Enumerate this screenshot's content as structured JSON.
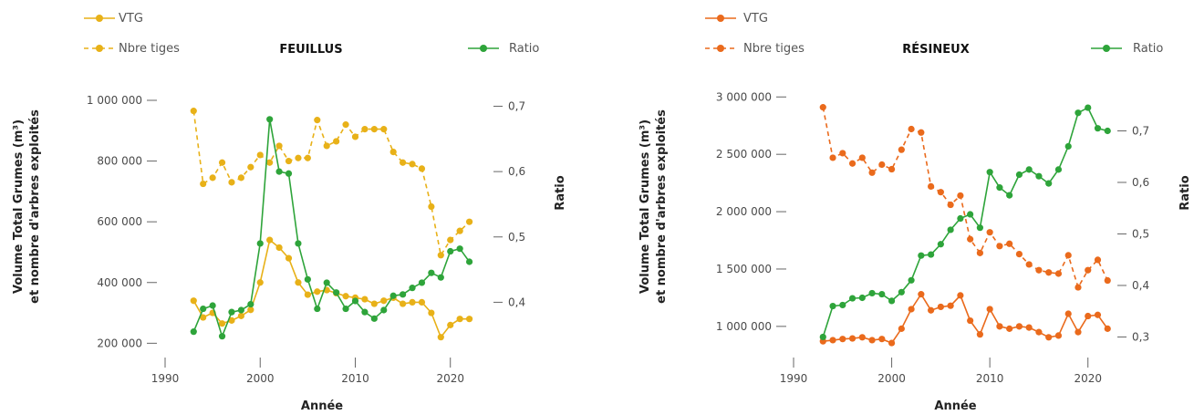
{
  "chart_data": [
    {
      "type": "line",
      "title": "FEUILLUS",
      "xlabel": "Année",
      "ylabel_line1": "Volume Total Grumes (m³)",
      "ylabel_line2": "et nombre d'arbres exploités",
      "y2label": "Ratio",
      "xlim": [
        1990,
        2023
      ],
      "ylim": [
        180000,
        1030000
      ],
      "y2lim": [
        0.328,
        0.723
      ],
      "xticks": [
        1990,
        2000,
        2010,
        2020
      ],
      "yticks": [
        200000,
        400000,
        600000,
        800000,
        1000000
      ],
      "ytick_labels": [
        "200 000",
        "400 000",
        "600 000",
        "800 000",
        "1 000 000"
      ],
      "y2ticks": [
        0.4,
        0.5,
        0.6,
        0.7
      ],
      "y2tick_labels": [
        "0,4",
        "0,5",
        "0,6",
        "0,7"
      ],
      "grid": false,
      "colors": {
        "vtg": "#e8b118",
        "ratio": "#2ea43a"
      },
      "x": [
        1993,
        1994,
        1995,
        1996,
        1997,
        1998,
        1999,
        2000,
        2001,
        2002,
        2003,
        2004,
        2005,
        2006,
        2007,
        2008,
        2009,
        2010,
        2011,
        2012,
        2013,
        2014,
        2015,
        2016,
        2017,
        2018,
        2019,
        2020,
        2021,
        2022
      ],
      "series": [
        {
          "name": "VTG",
          "axis": "left",
          "style": "solid",
          "color": "#e8b118",
          "values": [
            340000,
            285000,
            300000,
            265000,
            275000,
            290000,
            310000,
            400000,
            540000,
            515000,
            480000,
            400000,
            360000,
            370000,
            375000,
            365000,
            355000,
            350000,
            345000,
            330000,
            340000,
            350000,
            330000,
            335000,
            335000,
            300000,
            220000,
            260000,
            280000,
            280000
          ]
        },
        {
          "name": "Nbre tiges",
          "axis": "left",
          "style": "dashed",
          "color": "#e8b118",
          "values": [
            965000,
            725000,
            745000,
            795000,
            730000,
            745000,
            780000,
            820000,
            795000,
            850000,
            800000,
            810000,
            810000,
            935000,
            850000,
            865000,
            920000,
            880000,
            905000,
            905000,
            905000,
            830000,
            795000,
            790000,
            775000,
            650000,
            490000,
            540000,
            570000,
            600000
          ]
        },
        {
          "name": "Ratio",
          "axis": "right",
          "style": "solid",
          "color": "#2ea43a",
          "values": [
            0.355,
            0.39,
            0.395,
            0.348,
            0.385,
            0.388,
            0.397,
            0.49,
            0.68,
            0.6,
            0.597,
            0.49,
            0.435,
            0.39,
            0.43,
            0.415,
            0.39,
            0.402,
            0.385,
            0.375,
            0.388,
            0.41,
            0.412,
            0.422,
            0.43,
            0.445,
            0.438,
            0.478,
            0.482,
            0.462
          ]
        }
      ]
    },
    {
      "type": "line",
      "title": "RÉSINEUX",
      "xlabel": "Année",
      "ylabel_line1": "Volume Total Grumes (m³)",
      "ylabel_line2": "et nombre d'arbres exploités",
      "y2label": "Ratio",
      "xlim": [
        1990,
        2023
      ],
      "ylim": [
        800000,
        3050000
      ],
      "y2lim": [
        0.276,
        0.777
      ],
      "xticks": [
        1990,
        2000,
        2010,
        2020
      ],
      "yticks": [
        1000000,
        1500000,
        2000000,
        2500000,
        3000000
      ],
      "ytick_labels": [
        "1 000 000",
        "1 500 000",
        "2 000 000",
        "2 500 000",
        "3 000 000"
      ],
      "y2ticks": [
        0.3,
        0.4,
        0.5,
        0.6,
        0.7
      ],
      "y2tick_labels": [
        "0,3",
        "0,4",
        "0,5",
        "0,6",
        "0,7"
      ],
      "grid": false,
      "colors": {
        "vtg": "#ea6a1c",
        "ratio": "#2ea43a"
      },
      "x": [
        1993,
        1994,
        1995,
        1996,
        1997,
        1998,
        1999,
        2000,
        2001,
        2002,
        2003,
        2004,
        2005,
        2006,
        2007,
        2008,
        2009,
        2010,
        2011,
        2012,
        2013,
        2014,
        2015,
        2016,
        2017,
        2018,
        2019,
        2020,
        2021,
        2022
      ],
      "series": [
        {
          "name": "VTG",
          "axis": "left",
          "style": "solid",
          "color": "#ea6a1c",
          "values": [
            870000,
            880000,
            890000,
            895000,
            905000,
            880000,
            890000,
            855000,
            980000,
            1150000,
            1280000,
            1140000,
            1170000,
            1180000,
            1270000,
            1050000,
            930000,
            1150000,
            1000000,
            980000,
            1000000,
            990000,
            950000,
            905000,
            920000,
            1110000,
            950000,
            1090000,
            1100000,
            980000
          ]
        },
        {
          "name": "Nbre tiges",
          "axis": "left",
          "style": "dashed",
          "color": "#ea6a1c",
          "values": [
            2910000,
            2470000,
            2510000,
            2420000,
            2470000,
            2340000,
            2410000,
            2370000,
            2540000,
            2720000,
            2690000,
            2220000,
            2170000,
            2060000,
            2140000,
            1760000,
            1640000,
            1820000,
            1700000,
            1720000,
            1630000,
            1540000,
            1490000,
            1470000,
            1460000,
            1620000,
            1340000,
            1490000,
            1580000,
            1400000
          ]
        },
        {
          "name": "Ratio",
          "axis": "right",
          "style": "solid",
          "color": "#2ea43a",
          "values": [
            0.3,
            0.36,
            0.362,
            0.375,
            0.376,
            0.385,
            0.383,
            0.37,
            0.387,
            0.41,
            0.458,
            0.46,
            0.48,
            0.508,
            0.53,
            0.538,
            0.512,
            0.62,
            0.59,
            0.575,
            0.615,
            0.625,
            0.612,
            0.598,
            0.625,
            0.67,
            0.735,
            0.745,
            0.705,
            0.7
          ]
        }
      ]
    }
  ]
}
